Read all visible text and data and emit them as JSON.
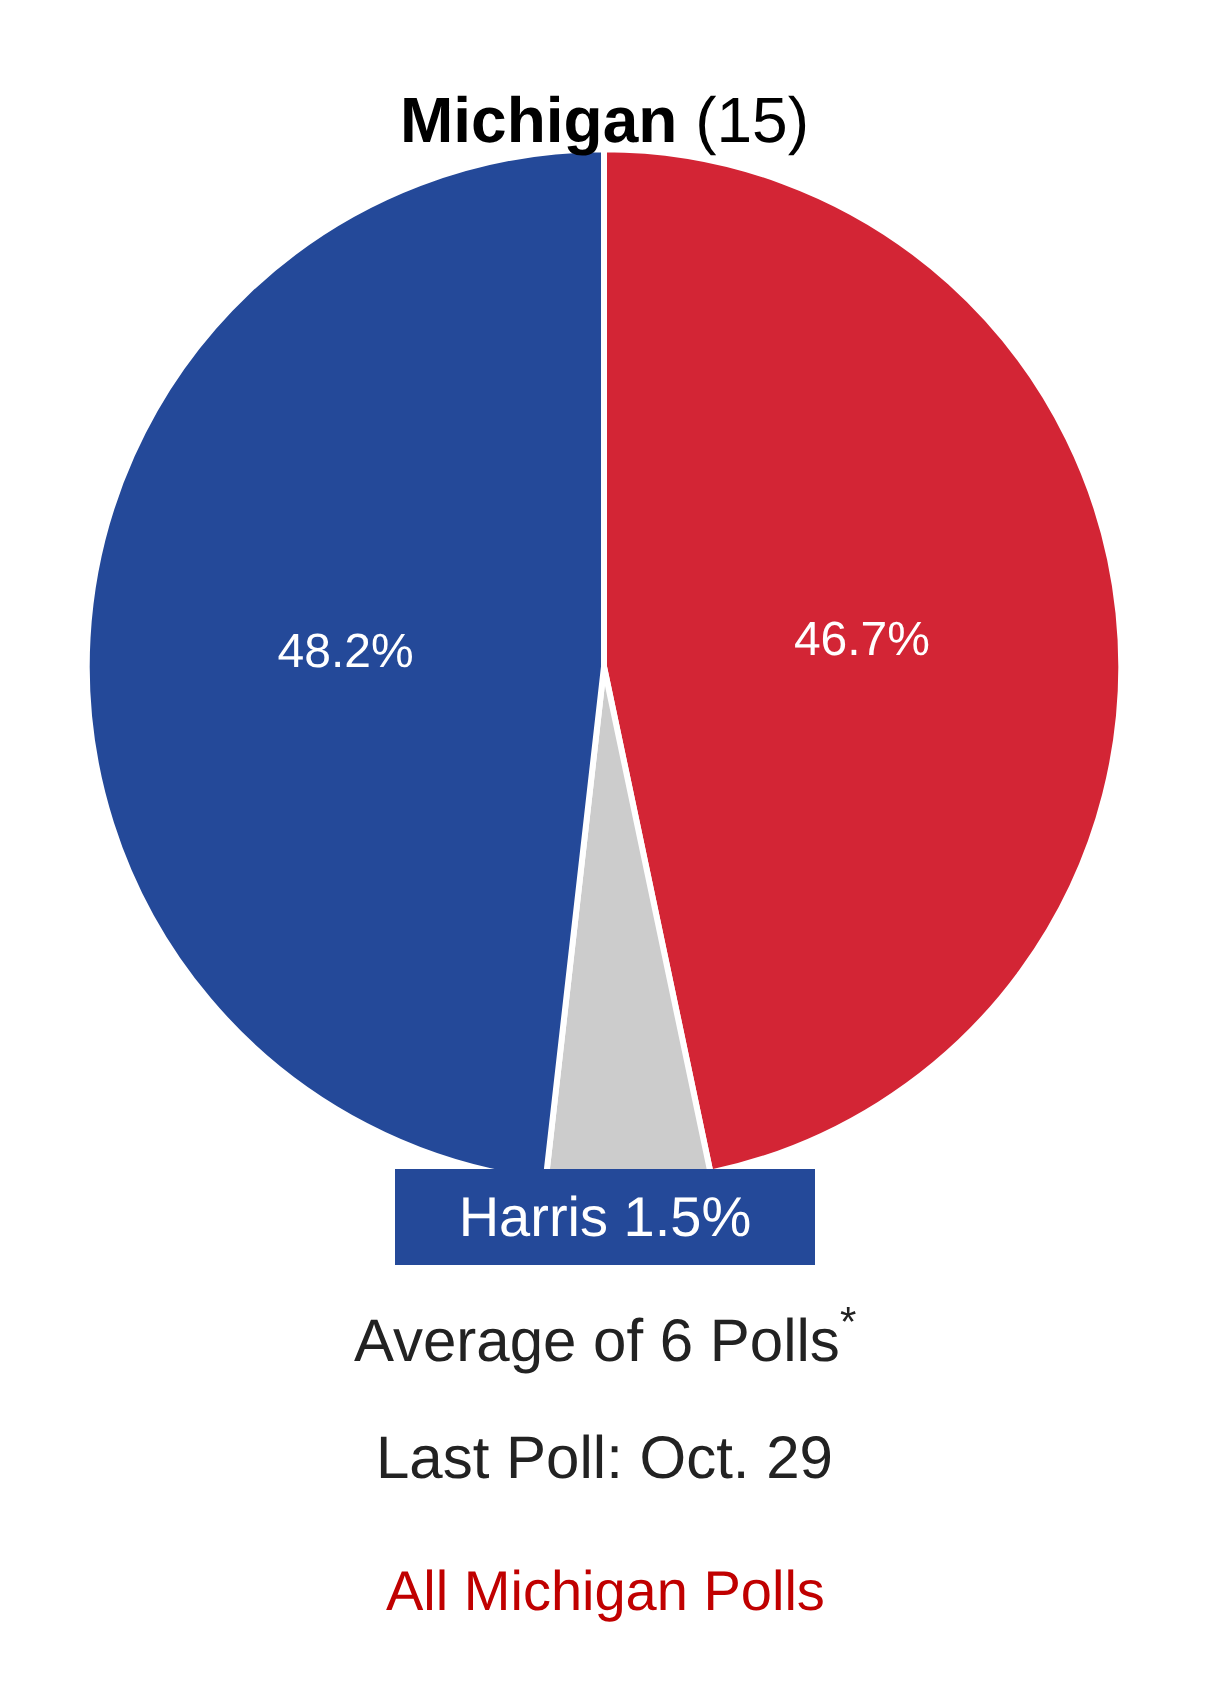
{
  "chart_data": {
    "type": "pie",
    "title": "Michigan",
    "subtitle": "(15)",
    "categories": [
      null,
      null,
      null
    ],
    "values": [
      46.7,
      5.1,
      48.2
    ],
    "colors": [
      "#d32535",
      "#cccccc",
      "#244999"
    ],
    "value_labels": [
      "46.7%",
      null,
      "48.2%"
    ],
    "legend": false,
    "annotations": [
      "Harris 1.5%",
      "Average of 6 Polls$^{*}$",
      "Last Poll: Oct. 29",
      "All Michigan Polls"
    ]
  }
}
